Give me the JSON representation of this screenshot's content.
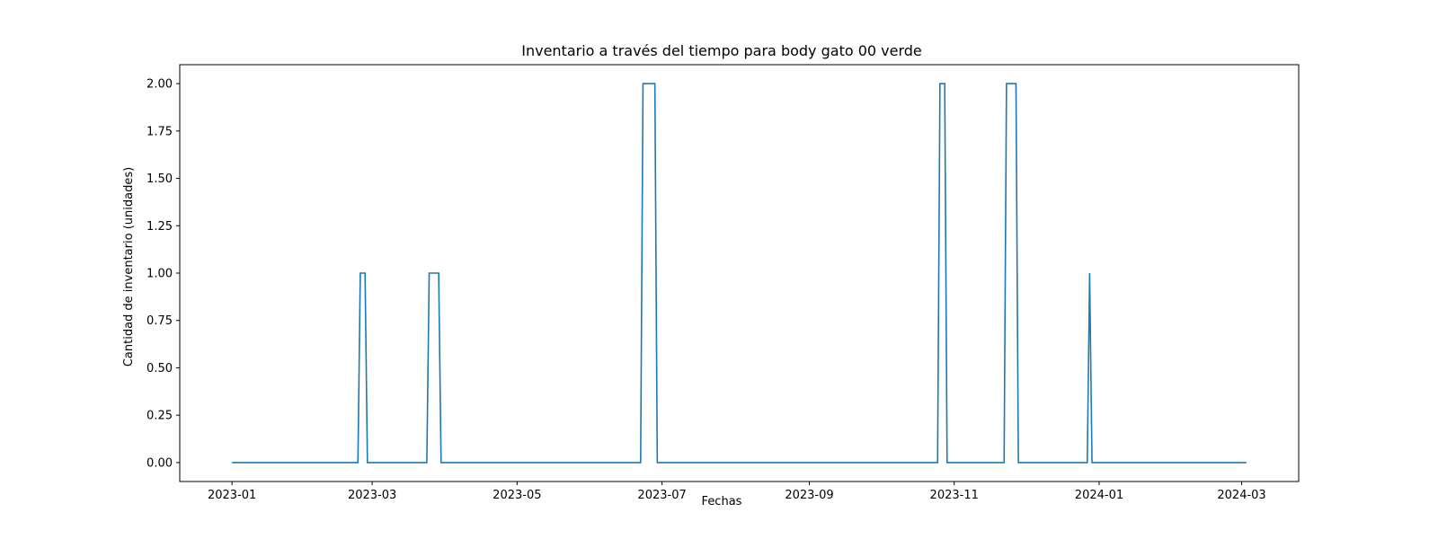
{
  "chart_data": {
    "type": "line",
    "title": "Inventario a través del tiempo para body gato 00 verde",
    "xlabel": "Fechas",
    "ylabel": "Cantidad de inventario (unidades)",
    "x_type": "date",
    "xlim": [
      "2022-12-10",
      "2024-03-25"
    ],
    "ylim": [
      -0.1,
      2.1
    ],
    "grid": false,
    "x_ticks": [
      "2023-01",
      "2023-03",
      "2023-05",
      "2023-07",
      "2023-09",
      "2023-11",
      "2024-01",
      "2024-03"
    ],
    "x_tick_dates": [
      "2023-01-01",
      "2023-03-01",
      "2023-05-01",
      "2023-07-01",
      "2023-09-01",
      "2023-11-01",
      "2024-01-01",
      "2024-03-01"
    ],
    "y_ticks": [
      "0.00",
      "0.25",
      "0.50",
      "0.75",
      "1.00",
      "1.25",
      "1.50",
      "1.75",
      "2.00"
    ],
    "series": [
      {
        "color": "#1f77b4",
        "points": [
          [
            "2023-01-01",
            0
          ],
          [
            "2023-02-23",
            0
          ],
          [
            "2023-02-24",
            1
          ],
          [
            "2023-02-26",
            1
          ],
          [
            "2023-02-27",
            0
          ],
          [
            "2023-03-24",
            0
          ],
          [
            "2023-03-25",
            1
          ],
          [
            "2023-03-29",
            1
          ],
          [
            "2023-03-30",
            0
          ],
          [
            "2023-06-22",
            0
          ],
          [
            "2023-06-23",
            2
          ],
          [
            "2023-06-28",
            2
          ],
          [
            "2023-06-29",
            0
          ],
          [
            "2023-10-25",
            0
          ],
          [
            "2023-10-26",
            2
          ],
          [
            "2023-10-28",
            2
          ],
          [
            "2023-10-29",
            0
          ],
          [
            "2023-11-22",
            0
          ],
          [
            "2023-11-23",
            2
          ],
          [
            "2023-11-27",
            2
          ],
          [
            "2023-11-28",
            0
          ],
          [
            "2023-12-27",
            0
          ],
          [
            "2023-12-28",
            1
          ],
          [
            "2023-12-29",
            0
          ],
          [
            "2024-03-03",
            0
          ]
        ]
      }
    ]
  }
}
